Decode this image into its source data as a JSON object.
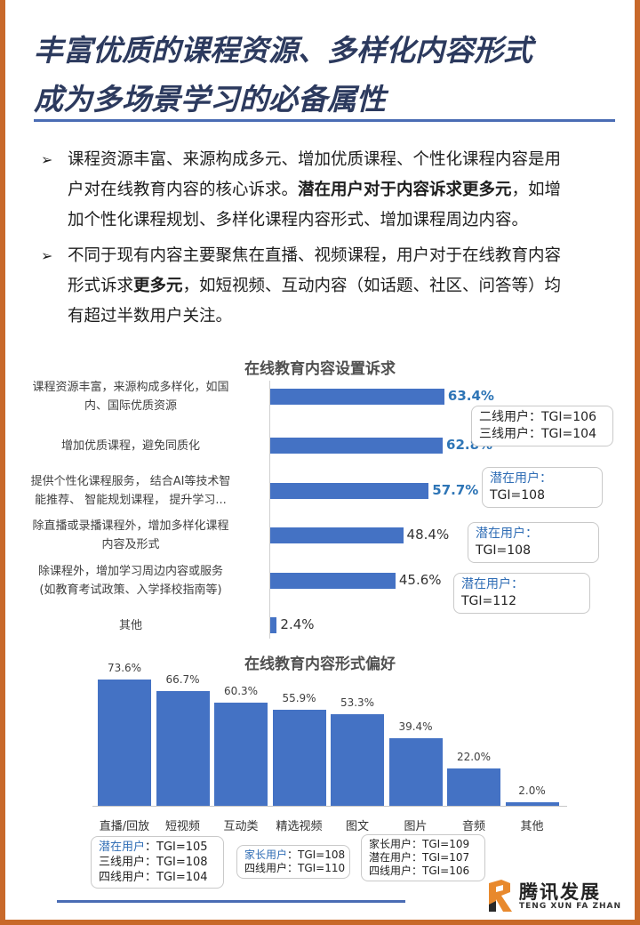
{
  "title": {
    "line1": "丰富优质的课程资源、多样化内容形式",
    "line2": "成为多场景学习的必备属性"
  },
  "bullets": [
    {
      "lines": [
        [
          {
            "t": "课程资源丰富、来源构成多元、增加优质课程、个性化课程内容是用"
          }
        ],
        [
          {
            "t": "户对在线教育内容的核心诉求。"
          },
          {
            "t": "潜在用户对于内容诉求更多元",
            "b": true
          },
          {
            "t": "，如增"
          }
        ],
        [
          {
            "t": "加个性化课程规划、多样化课程内容形式、增加课程周边内容。"
          }
        ]
      ]
    },
    {
      "lines": [
        [
          {
            "t": "不同于现有内容主要聚焦在直播、视频课程，用户对于在线教育内容"
          }
        ],
        [
          {
            "t": "形式诉求"
          },
          {
            "t": "更多元",
            "b": true
          },
          {
            "t": "，如短视频、互动内容（如话题、社区、问答等）均"
          }
        ],
        [
          {
            "t": "有超过半数用户关注。"
          }
        ]
      ]
    }
  ],
  "chart_data": [
    {
      "type": "bar",
      "orientation": "horizontal",
      "title": "在线教育内容设置诉求",
      "categories": [
        [
          "课程资源丰富，来源构成多样化，如国",
          "内、国际优质资源"
        ],
        [
          "增加优质课程，避免同质化"
        ],
        [
          "提供个性化课程服务， 结合AI等技术智",
          "能推荐、 智能规划课程， 提升学习..."
        ],
        [
          "除直播或录播课程外，增加多样化课程",
          "内容及形式"
        ],
        [
          "除课程外，增加学习周边内容或服务",
          "(如教育考试政策、入学择校指南等)"
        ],
        [
          "其他"
        ]
      ],
      "values": [
        63.4,
        62.8,
        57.7,
        48.4,
        45.6,
        2.4
      ],
      "value_labels": [
        "63.4%",
        "62.8%",
        "57.7%",
        "48.4%",
        "45.6%",
        "2.4%"
      ],
      "highlighted": [
        true,
        true,
        true,
        false,
        false,
        false
      ],
      "xlim": [
        0,
        100
      ],
      "annotations": [
        {
          "lines": [
            [
              "二线用户：TGI=106"
            ],
            [
              "三线用户：TGI=104"
            ]
          ]
        },
        {
          "lines": [
            [
              "潜在用户："
            ],
            [
              "TGI=108"
            ]
          ]
        },
        {
          "lines": [
            [
              "潜在用户："
            ],
            [
              "TGI=108"
            ]
          ]
        },
        {
          "lines": [
            [
              "潜在用户："
            ],
            [
              "TGI=112"
            ]
          ]
        }
      ]
    },
    {
      "type": "bar",
      "orientation": "vertical",
      "title": "在线教育内容形式偏好",
      "categories": [
        "直播/回放",
        "短视频",
        "互动类",
        "精选视频",
        "图文",
        "图片",
        "音频",
        "其他"
      ],
      "values": [
        73.6,
        66.7,
        60.3,
        55.9,
        53.3,
        39.4,
        22.0,
        2.0
      ],
      "value_labels": [
        "73.6%",
        "66.7%",
        "60.3%",
        "55.9%",
        "53.3%",
        "39.4%",
        "22.0%",
        "2.0%"
      ],
      "ylim": [
        0,
        80
      ],
      "annotations": [
        {
          "lines": [
            [
              "潜在用户",
              "：TGI=105"
            ],
            [
              "三线用户：TGI=108"
            ],
            [
              "四线用户：TGI=104"
            ]
          ]
        },
        {
          "lines": [
            [
              "家长用户",
              "：TGI=108"
            ],
            [
              "四线用户：TGI=110"
            ]
          ]
        },
        {
          "lines": [
            [
              "家长用户：TGI=109"
            ],
            [
              "潜在用户：TGI=107"
            ],
            [
              "四线用户：TGI=106"
            ]
          ]
        }
      ]
    }
  ],
  "colors": {
    "bar": "#4472c4",
    "highlight_text": "#2e75b6",
    "title": "#2c3a5e",
    "frame": "#c8692a"
  },
  "logo": {
    "name_cn": "腾讯发展",
    "name_en": "TENG XUN FA ZHAN"
  }
}
